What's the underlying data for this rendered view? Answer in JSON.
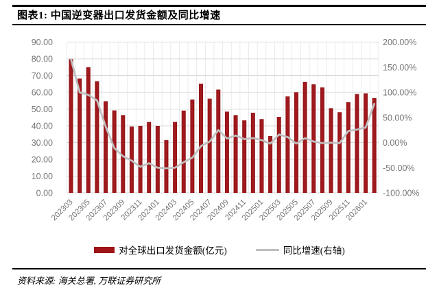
{
  "header": {
    "title": "图表1: 中国逆变器出口发货金额及同比增速"
  },
  "legend": {
    "bar_label": "对全球出口发货金额(亿元)",
    "line_label": "同比增速(右轴)"
  },
  "footer": {
    "source": "资料来源: 海关总署, 万联证券研究所"
  },
  "chart_data": {
    "type": "bar",
    "title": "图表1: 中国逆变器出口发货金额及同比增速",
    "categories": [
      "202303",
      "202304",
      "202305",
      "202306",
      "202307",
      "202308",
      "202309",
      "202310",
      "202311",
      "202312",
      "202401",
      "202402",
      "202403",
      "202404",
      "202405",
      "202406",
      "202407",
      "202408",
      "202409",
      "202410",
      "202411",
      "202412",
      "202501",
      "202502",
      "202503",
      "202504",
      "202505",
      "202506",
      "202507",
      "202508",
      "202509",
      "202510",
      "202511",
      "202512",
      "202601",
      "202602"
    ],
    "x_tick_labels": [
      "202303",
      "202305",
      "202307",
      "202309",
      "202311",
      "202401",
      "202403",
      "202405",
      "202407",
      "202409",
      "202411",
      "202501",
      "202503",
      "202505",
      "202507",
      "202509",
      "202511",
      "202601"
    ],
    "series": [
      {
        "name": "对全球出口发货金额(亿元)",
        "type": "bar",
        "axis": "left",
        "values": [
          79.8,
          68.3,
          75.0,
          66.6,
          54.6,
          49.2,
          46.4,
          39.6,
          40.0,
          42.4,
          40.0,
          31.5,
          42.4,
          49.1,
          55.7,
          65.1,
          56.2,
          61.7,
          48.5,
          46.4,
          43.3,
          47.8,
          44.0,
          33.9,
          45.3,
          57.6,
          60.0,
          66.2,
          64.8,
          63.0,
          50.5,
          48.1,
          54.2,
          59.0,
          59.4,
          56.7
        ]
      },
      {
        "name": "同比增速(右轴)",
        "type": "line",
        "axis": "right",
        "values_pct": [
          166,
          100,
          95,
          84,
          32,
          -11,
          -27,
          -36,
          -48,
          -41,
          -50,
          -51,
          -50,
          -39,
          -30,
          -7,
          2,
          25,
          8,
          14,
          7,
          9,
          5,
          -2,
          16,
          11,
          -2,
          9,
          2,
          -1,
          0,
          -1,
          23,
          26,
          30,
          77
        ]
      }
    ],
    "left_axis": {
      "min": 0,
      "max": 90,
      "step": 10,
      "ticks": [
        "90.00",
        "80.00",
        "70.00",
        "60.00",
        "50.00",
        "40.00",
        "30.00",
        "20.00",
        "10.00",
        "0.00"
      ]
    },
    "right_axis": {
      "min": -100,
      "max": 200,
      "step": 50,
      "ticks": [
        "200.00%",
        "150.00%",
        "100.00%",
        "50.00%",
        "0.00%",
        "-50.00%",
        "-100.00%"
      ]
    },
    "grid": {
      "horizontal": true,
      "vertical": true
    },
    "legend_position": "bottom",
    "colors": {
      "bar": "#A21A1E",
      "bar_edge": "#8C1013",
      "line": "#BFBFBF",
      "grid_h": "#D9D9D9",
      "grid_v": "#E6E6E6",
      "axis_text": "#767676"
    }
  }
}
